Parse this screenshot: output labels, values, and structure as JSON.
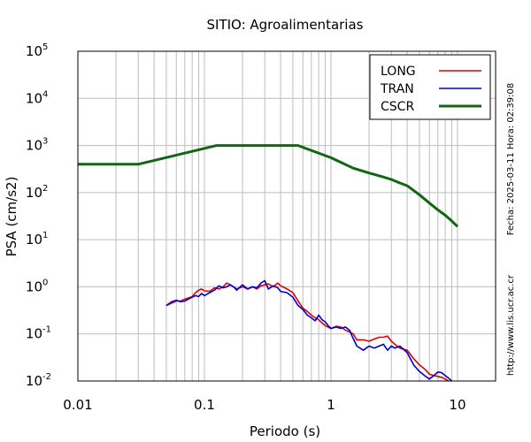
{
  "chart_data": {
    "type": "line",
    "title": "SITIO: Agroalimentarias",
    "xlabel": "Periodo (s)",
    "ylabel": "PSA (cm/s2)",
    "x_scale": "log",
    "y_scale": "log",
    "xlim": [
      0.01,
      20
    ],
    "ylim": [
      0.01,
      100000
    ],
    "grid": true,
    "legend_position": "top-right",
    "x_ticks": [
      {
        "value": 0.01,
        "label": "0.01"
      },
      {
        "value": 0.1,
        "label": "0.1"
      },
      {
        "value": 1,
        "label": "1"
      },
      {
        "value": 10,
        "label": "10"
      }
    ],
    "y_ticks": [
      {
        "value": 0.01,
        "base": "10",
        "exp": "-2"
      },
      {
        "value": 0.1,
        "base": "10",
        "exp": "-1"
      },
      {
        "value": 1,
        "base": "10",
        "exp": "0"
      },
      {
        "value": 10,
        "base": "10",
        "exp": "1"
      },
      {
        "value": 100,
        "base": "10",
        "exp": "2"
      },
      {
        "value": 1000,
        "base": "10",
        "exp": "3"
      },
      {
        "value": 10000,
        "base": "10",
        "exp": "4"
      },
      {
        "value": 100000,
        "base": "10",
        "exp": "5"
      }
    ],
    "series": [
      {
        "name": "LONG",
        "color": "#e00000",
        "points": [
          [
            0.05,
            0.4
          ],
          [
            0.055,
            0.45
          ],
          [
            0.06,
            0.5
          ],
          [
            0.065,
            0.5
          ],
          [
            0.07,
            0.55
          ],
          [
            0.075,
            0.58
          ],
          [
            0.08,
            0.62
          ],
          [
            0.085,
            0.75
          ],
          [
            0.09,
            0.85
          ],
          [
            0.095,
            0.9
          ],
          [
            0.1,
            0.82
          ],
          [
            0.11,
            0.8
          ],
          [
            0.12,
            0.95
          ],
          [
            0.13,
            0.9
          ],
          [
            0.14,
            1.0
          ],
          [
            0.15,
            1.2
          ],
          [
            0.16,
            1.1
          ],
          [
            0.17,
            1.0
          ],
          [
            0.18,
            0.9
          ],
          [
            0.2,
            1.0
          ],
          [
            0.22,
            0.9
          ],
          [
            0.24,
            1.0
          ],
          [
            0.26,
            0.9
          ],
          [
            0.28,
            1.05
          ],
          [
            0.3,
            1.1
          ],
          [
            0.32,
            1.15
          ],
          [
            0.35,
            1.0
          ],
          [
            0.38,
            1.2
          ],
          [
            0.4,
            1.05
          ],
          [
            0.45,
            0.9
          ],
          [
            0.5,
            0.75
          ],
          [
            0.55,
            0.5
          ],
          [
            0.6,
            0.35
          ],
          [
            0.65,
            0.3
          ],
          [
            0.7,
            0.25
          ],
          [
            0.75,
            0.22
          ],
          [
            0.8,
            0.2
          ],
          [
            0.85,
            0.17
          ],
          [
            0.9,
            0.15
          ],
          [
            1.0,
            0.13
          ],
          [
            1.1,
            0.145
          ],
          [
            1.2,
            0.14
          ],
          [
            1.3,
            0.12
          ],
          [
            1.4,
            0.11
          ],
          [
            1.5,
            0.1
          ],
          [
            1.6,
            0.075
          ],
          [
            1.8,
            0.075
          ],
          [
            2.0,
            0.07
          ],
          [
            2.2,
            0.078
          ],
          [
            2.4,
            0.085
          ],
          [
            2.6,
            0.085
          ],
          [
            2.8,
            0.09
          ],
          [
            3.0,
            0.07
          ],
          [
            3.2,
            0.06
          ],
          [
            3.5,
            0.05
          ],
          [
            4.0,
            0.045
          ],
          [
            4.5,
            0.03
          ],
          [
            5.0,
            0.022
          ],
          [
            5.5,
            0.018
          ],
          [
            6.0,
            0.014
          ],
          [
            6.5,
            0.013
          ],
          [
            7.0,
            0.0125
          ],
          [
            7.5,
            0.012
          ],
          [
            8.0,
            0.011
          ],
          [
            8.5,
            0.01
          ]
        ]
      },
      {
        "name": "TRAN",
        "color": "#0000d0",
        "points": [
          [
            0.05,
            0.4
          ],
          [
            0.055,
            0.48
          ],
          [
            0.06,
            0.52
          ],
          [
            0.065,
            0.48
          ],
          [
            0.07,
            0.5
          ],
          [
            0.075,
            0.55
          ],
          [
            0.08,
            0.6
          ],
          [
            0.085,
            0.65
          ],
          [
            0.09,
            0.62
          ],
          [
            0.095,
            0.72
          ],
          [
            0.1,
            0.65
          ],
          [
            0.11,
            0.75
          ],
          [
            0.12,
            0.85
          ],
          [
            0.13,
            1.05
          ],
          [
            0.14,
            0.95
          ],
          [
            0.15,
            1.0
          ],
          [
            0.16,
            1.1
          ],
          [
            0.17,
            1.0
          ],
          [
            0.18,
            0.85
          ],
          [
            0.2,
            1.1
          ],
          [
            0.22,
            0.9
          ],
          [
            0.24,
            1.0
          ],
          [
            0.26,
            0.95
          ],
          [
            0.28,
            1.2
          ],
          [
            0.3,
            1.35
          ],
          [
            0.32,
            0.9
          ],
          [
            0.35,
            1.05
          ],
          [
            0.38,
            0.95
          ],
          [
            0.4,
            0.8
          ],
          [
            0.45,
            0.75
          ],
          [
            0.5,
            0.6
          ],
          [
            0.55,
            0.4
          ],
          [
            0.6,
            0.33
          ],
          [
            0.65,
            0.25
          ],
          [
            0.7,
            0.22
          ],
          [
            0.75,
            0.19
          ],
          [
            0.8,
            0.25
          ],
          [
            0.85,
            0.2
          ],
          [
            0.9,
            0.18
          ],
          [
            0.95,
            0.15
          ],
          [
            1.0,
            0.13
          ],
          [
            1.1,
            0.14
          ],
          [
            1.2,
            0.13
          ],
          [
            1.3,
            0.14
          ],
          [
            1.4,
            0.12
          ],
          [
            1.5,
            0.08
          ],
          [
            1.6,
            0.055
          ],
          [
            1.8,
            0.045
          ],
          [
            2.0,
            0.055
          ],
          [
            2.2,
            0.05
          ],
          [
            2.4,
            0.055
          ],
          [
            2.6,
            0.06
          ],
          [
            2.8,
            0.045
          ],
          [
            3.0,
            0.055
          ],
          [
            3.2,
            0.05
          ],
          [
            3.5,
            0.055
          ],
          [
            4.0,
            0.04
          ],
          [
            4.5,
            0.022
          ],
          [
            5.0,
            0.016
          ],
          [
            5.5,
            0.013
          ],
          [
            6.0,
            0.011
          ],
          [
            6.5,
            0.013
          ],
          [
            7.0,
            0.0155
          ],
          [
            7.5,
            0.015
          ],
          [
            8.0,
            0.013
          ],
          [
            8.5,
            0.0115
          ],
          [
            9.0,
            0.01
          ]
        ]
      },
      {
        "name": "CSCR",
        "color": "#116611",
        "points": [
          [
            0.01,
            400
          ],
          [
            0.03,
            400
          ],
          [
            0.125,
            1000
          ],
          [
            0.55,
            1000
          ],
          [
            1.0,
            550
          ],
          [
            1.5,
            330
          ],
          [
            2.0,
            260
          ],
          [
            2.5,
            220
          ],
          [
            3.0,
            190
          ],
          [
            3.5,
            160
          ],
          [
            4.0,
            140
          ],
          [
            5.0,
            90
          ],
          [
            6.0,
            60
          ],
          [
            7.0,
            43
          ],
          [
            8.0,
            33
          ],
          [
            9.0,
            25
          ],
          [
            10.0,
            19
          ]
        ]
      }
    ]
  },
  "side_notes": {
    "datetime": "Fecha: 2025-03-11 Hora: 02:39:08",
    "website": "http://www.lis.ucr.ac.cr"
  }
}
